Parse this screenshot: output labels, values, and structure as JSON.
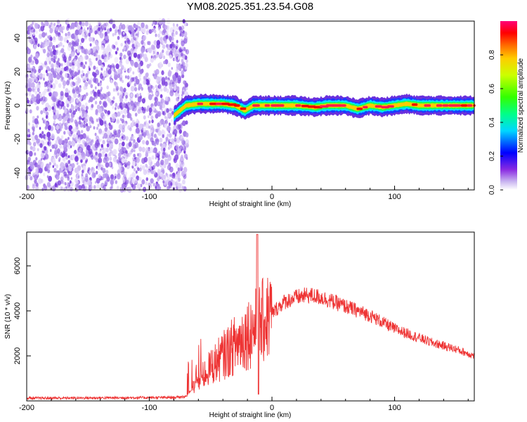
{
  "title": "YM08.2025.351.23.54.G08",
  "chart_data": [
    {
      "type": "heatmap",
      "name": "spectrogram",
      "xlabel": "Height of straight line (km)",
      "ylabel": "Frequency (Hz)",
      "xlim": [
        -200,
        165
      ],
      "ylim": [
        -50,
        50
      ],
      "xticks": [
        -200,
        -100,
        0,
        100
      ],
      "yticks": [
        -40,
        -20,
        0,
        20,
        40
      ],
      "noise_region_x": [
        -200,
        -75
      ],
      "transition_x": -80,
      "ridge": [
        {
          "x": -80,
          "y": -6
        },
        {
          "x": -75,
          "y": -3
        },
        {
          "x": -70,
          "y": 0
        },
        {
          "x": -60,
          "y": 1
        },
        {
          "x": -50,
          "y": 1
        },
        {
          "x": -40,
          "y": 1
        },
        {
          "x": -30,
          "y": 0
        },
        {
          "x": -22,
          "y": -3
        },
        {
          "x": -15,
          "y": 0
        },
        {
          "x": 0,
          "y": 0
        },
        {
          "x": 20,
          "y": 0
        },
        {
          "x": 35,
          "y": -1
        },
        {
          "x": 45,
          "y": 0
        },
        {
          "x": 60,
          "y": 0
        },
        {
          "x": 70,
          "y": -2
        },
        {
          "x": 80,
          "y": 0
        },
        {
          "x": 90,
          "y": -1
        },
        {
          "x": 100,
          "y": 0
        },
        {
          "x": 110,
          "y": 1
        },
        {
          "x": 120,
          "y": 0
        },
        {
          "x": 140,
          "y": 0
        },
        {
          "x": 165,
          "y": 0
        }
      ],
      "colorbar": {
        "label": "Normalized spectral amplitude",
        "range": [
          0,
          1
        ],
        "ticks": [
          "0.0",
          "0.2",
          "0.4",
          "0.6",
          "0.8"
        ],
        "tick_values": [
          0,
          0.2,
          0.4,
          0.6,
          0.8
        ]
      }
    },
    {
      "type": "line",
      "name": "snr",
      "xlabel": "Height of straight line (km)",
      "ylabel": "SNR (10 * v/v)",
      "xlim": [
        -200,
        165
      ],
      "ylim": [
        0,
        7500
      ],
      "xticks": [
        -200,
        -100,
        0,
        100
      ],
      "yticks": [
        2000,
        4000,
        6000
      ],
      "color": "#ee3333",
      "envelope": [
        {
          "x": -200,
          "y": 120
        },
        {
          "x": -80,
          "y": 150
        },
        {
          "x": -70,
          "y": 200
        },
        {
          "x": -60,
          "y": 900
        },
        {
          "x": -50,
          "y": 1500
        },
        {
          "x": -40,
          "y": 2000
        },
        {
          "x": -30,
          "y": 2500
        },
        {
          "x": -20,
          "y": 3000
        },
        {
          "x": -10,
          "y": 3400
        },
        {
          "x": 0,
          "y": 3900
        },
        {
          "x": 10,
          "y": 4400
        },
        {
          "x": 20,
          "y": 4600
        },
        {
          "x": 30,
          "y": 4700
        },
        {
          "x": 40,
          "y": 4600
        },
        {
          "x": 50,
          "y": 4400
        },
        {
          "x": 60,
          "y": 4200
        },
        {
          "x": 70,
          "y": 4000
        },
        {
          "x": 80,
          "y": 3800
        },
        {
          "x": 90,
          "y": 3500
        },
        {
          "x": 100,
          "y": 3200
        },
        {
          "x": 110,
          "y": 3000
        },
        {
          "x": 120,
          "y": 2800
        },
        {
          "x": 130,
          "y": 2600
        },
        {
          "x": 140,
          "y": 2450
        },
        {
          "x": 150,
          "y": 2300
        },
        {
          "x": 165,
          "y": 2000
        }
      ],
      "peaks": [
        {
          "x": -12,
          "y": 7400
        },
        {
          "x": -11,
          "y": 300
        }
      ]
    }
  ]
}
